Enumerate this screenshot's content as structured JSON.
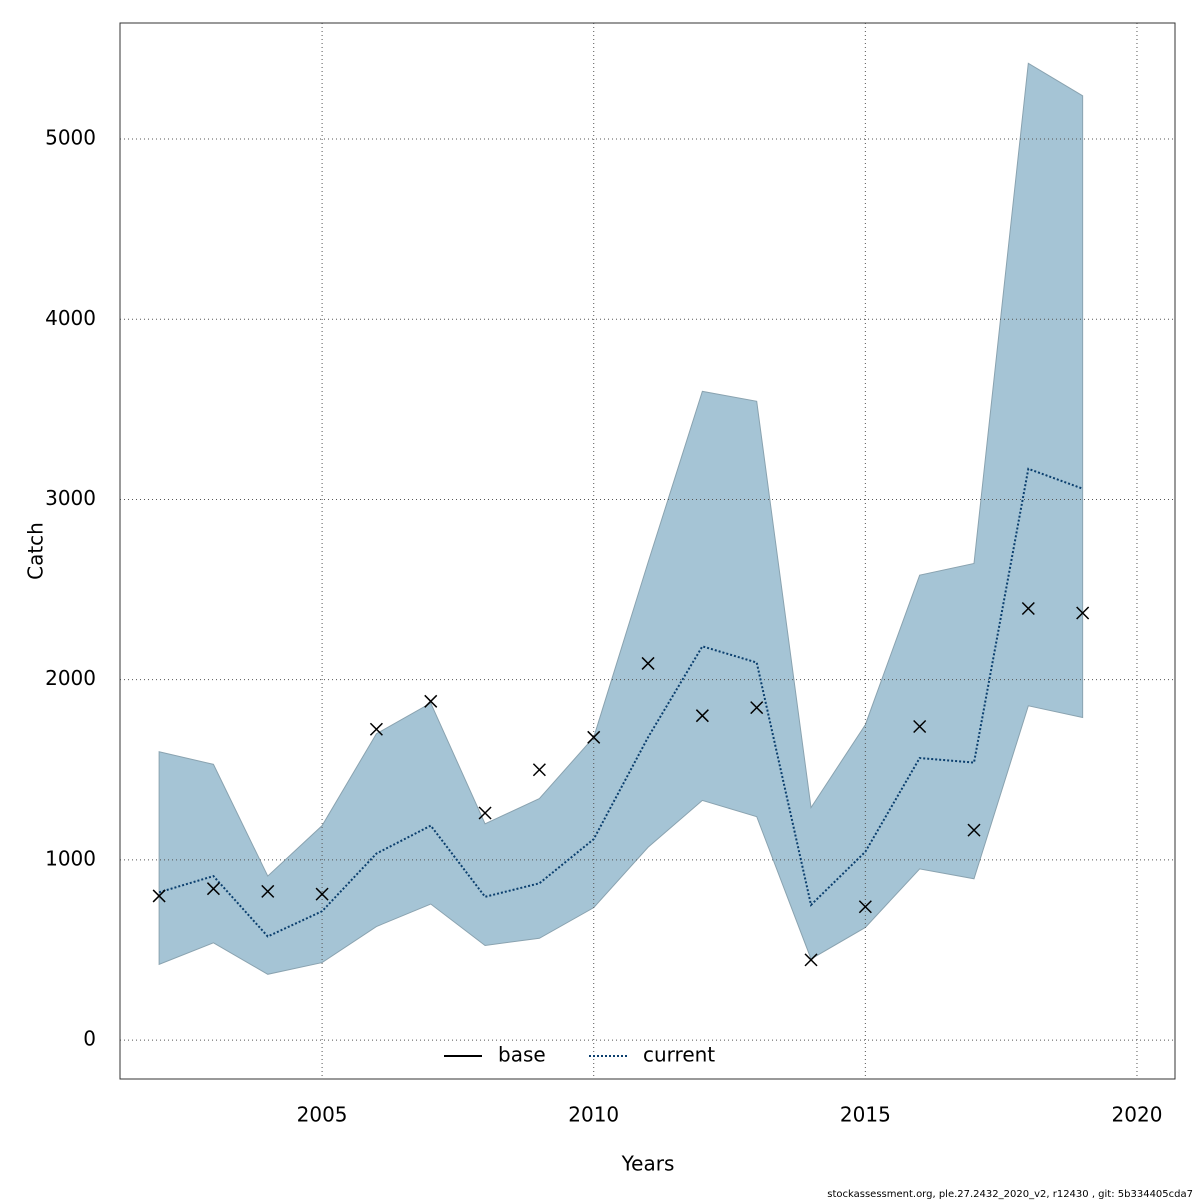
{
  "chart_data": {
    "type": "line",
    "xlabel": "Years",
    "ylabel": "Catch",
    "footer": "stockassessment.org, ple.27.2432_2020_v2, r12430 , git: 5b334405cda7",
    "x": [
      2002,
      2003,
      2004,
      2005,
      2006,
      2007,
      2008,
      2009,
      2010,
      2011,
      2012,
      2013,
      2014,
      2015,
      2016,
      2017,
      2018,
      2019
    ],
    "band": {
      "color": "#a5c4d5",
      "upper": [
        1600,
        1530,
        910,
        1190,
        1700,
        1870,
        1200,
        1340,
        1680,
        2650,
        3600,
        3545,
        1290,
        1750,
        2580,
        2645,
        5420,
        5240
      ],
      "lower": [
        420,
        540,
        365,
        430,
        630,
        755,
        525,
        565,
        735,
        1070,
        1330,
        1240,
        450,
        625,
        950,
        895,
        1855,
        1790
      ]
    },
    "series": [
      {
        "name": "base",
        "color": "#000000"
      },
      {
        "name": "current",
        "color": "#0b3f6e",
        "values": [
          820,
          910,
          575,
          715,
          1035,
          1190,
          795,
          870,
          1115,
          1680,
          2185,
          2095,
          750,
          1045,
          1565,
          1540,
          3170,
          3060
        ]
      }
    ],
    "observed": {
      "values": [
        800,
        840,
        825,
        810,
        1725,
        1880,
        1260,
        1500,
        1680,
        2090,
        1800,
        1845,
        445,
        740,
        1740,
        1165,
        2395,
        2370
      ]
    },
    "xlim": [
      2001.28,
      2020.7
    ],
    "ylim": [
      -216,
      5644
    ],
    "xticks": [
      2005,
      2010,
      2015,
      2020
    ],
    "yticks": [
      0,
      1000,
      2000,
      3000,
      4000,
      5000
    ],
    "grid": true,
    "legend": "bottom"
  }
}
